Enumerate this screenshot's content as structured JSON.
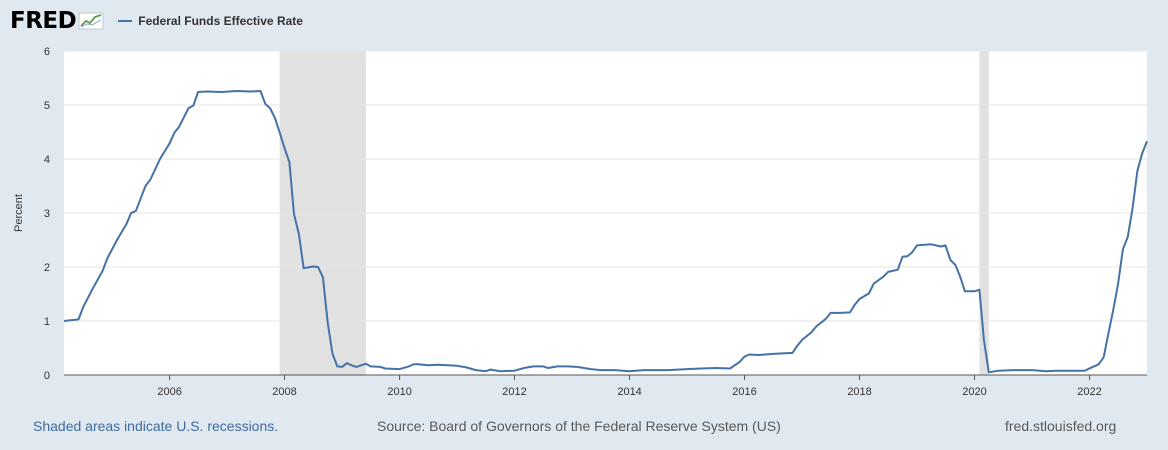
{
  "header": {
    "logo_text": "FRED",
    "logo_icon": "trend-chart-icon",
    "legend_label": "Federal Funds Effective Rate"
  },
  "footer": {
    "left": "Shaded areas indicate U.S. recessions.",
    "source": "Source: Board of Governors of the Federal Reserve System (US)",
    "site": "fred.stlouisfed.org"
  },
  "colors": {
    "background": "#e1e9f0",
    "plot_background": "#ffffff",
    "line": "#4572a7",
    "recession": "#e1e1e1",
    "grid": "#e6e6e6"
  },
  "chart_data": {
    "type": "line",
    "title": "",
    "ylabel": "Percent",
    "xlabel": "",
    "ylim": [
      0,
      6
    ],
    "xlim": [
      "2004-03-01",
      "2023-01-01"
    ],
    "y_ticks": [
      "0",
      "1",
      "2",
      "3",
      "4",
      "5",
      "6"
    ],
    "x_ticks": [
      "2006",
      "2008",
      "2010",
      "2012",
      "2014",
      "2016",
      "2018",
      "2020",
      "2022"
    ],
    "grid": true,
    "legend": "top-left",
    "recessions": [
      [
        "2007-12-01",
        "2009-06-01"
      ],
      [
        "2020-02-01",
        "2020-04-01"
      ]
    ],
    "series": [
      {
        "name": "Federal Funds Effective Rate",
        "points": [
          [
            "2004-03-01",
            1.0
          ],
          [
            "2004-06-01",
            1.03
          ],
          [
            "2004-07-01",
            1.26
          ],
          [
            "2004-09-01",
            1.61
          ],
          [
            "2004-11-01",
            1.93
          ],
          [
            "2004-12-01",
            2.16
          ],
          [
            "2005-02-01",
            2.5
          ],
          [
            "2005-04-01",
            2.79
          ],
          [
            "2005-05-01",
            3.0
          ],
          [
            "2005-06-01",
            3.04
          ],
          [
            "2005-08-01",
            3.5
          ],
          [
            "2005-09-01",
            3.62
          ],
          [
            "2005-11-01",
            4.0
          ],
          [
            "2006-01-01",
            4.29
          ],
          [
            "2006-02-01",
            4.49
          ],
          [
            "2006-03-01",
            4.59
          ],
          [
            "2006-05-01",
            4.94
          ],
          [
            "2006-06-01",
            4.99
          ],
          [
            "2006-07-01",
            5.24
          ],
          [
            "2006-09-01",
            5.25
          ],
          [
            "2006-12-01",
            5.24
          ],
          [
            "2007-03-01",
            5.26
          ],
          [
            "2007-06-01",
            5.25
          ],
          [
            "2007-08-01",
            5.26
          ],
          [
            "2007-09-01",
            5.02
          ],
          [
            "2007-10-01",
            4.94
          ],
          [
            "2007-11-01",
            4.76
          ],
          [
            "2007-12-01",
            4.49
          ],
          [
            "2008-01-01",
            4.2
          ],
          [
            "2008-02-01",
            3.94
          ],
          [
            "2008-03-01",
            2.98
          ],
          [
            "2008-04-01",
            2.61
          ],
          [
            "2008-05-01",
            1.98
          ],
          [
            "2008-07-01",
            2.01
          ],
          [
            "2008-08-01",
            2.0
          ],
          [
            "2008-09-01",
            1.81
          ],
          [
            "2008-10-01",
            0.97
          ],
          [
            "2008-11-01",
            0.39
          ],
          [
            "2008-12-01",
            0.16
          ],
          [
            "2009-01-01",
            0.15
          ],
          [
            "2009-02-01",
            0.22
          ],
          [
            "2009-03-01",
            0.18
          ],
          [
            "2009-04-01",
            0.15
          ],
          [
            "2009-06-01",
            0.21
          ],
          [
            "2009-07-01",
            0.16
          ],
          [
            "2009-09-01",
            0.15
          ],
          [
            "2009-10-01",
            0.12
          ],
          [
            "2010-01-01",
            0.11
          ],
          [
            "2010-03-01",
            0.16
          ],
          [
            "2010-04-01",
            0.2
          ],
          [
            "2010-05-01",
            0.2
          ],
          [
            "2010-07-01",
            0.18
          ],
          [
            "2010-09-01",
            0.19
          ],
          [
            "2011-01-01",
            0.17
          ],
          [
            "2011-03-01",
            0.14
          ],
          [
            "2011-05-01",
            0.09
          ],
          [
            "2011-07-01",
            0.07
          ],
          [
            "2011-08-01",
            0.1
          ],
          [
            "2011-10-01",
            0.07
          ],
          [
            "2012-01-01",
            0.08
          ],
          [
            "2012-03-01",
            0.13
          ],
          [
            "2012-05-01",
            0.16
          ],
          [
            "2012-07-01",
            0.16
          ],
          [
            "2012-08-01",
            0.13
          ],
          [
            "2012-10-01",
            0.16
          ],
          [
            "2012-12-01",
            0.16
          ],
          [
            "2013-02-01",
            0.15
          ],
          [
            "2013-05-01",
            0.11
          ],
          [
            "2013-07-01",
            0.09
          ],
          [
            "2013-10-01",
            0.09
          ],
          [
            "2014-01-01",
            0.07
          ],
          [
            "2014-04-01",
            0.09
          ],
          [
            "2014-07-01",
            0.09
          ],
          [
            "2014-09-01",
            0.09
          ],
          [
            "2015-01-01",
            0.11
          ],
          [
            "2015-04-01",
            0.12
          ],
          [
            "2015-07-01",
            0.13
          ],
          [
            "2015-10-01",
            0.12
          ],
          [
            "2015-12-01",
            0.24
          ],
          [
            "2016-01-01",
            0.34
          ],
          [
            "2016-02-01",
            0.38
          ],
          [
            "2016-04-01",
            0.37
          ],
          [
            "2016-07-01",
            0.39
          ],
          [
            "2016-09-01",
            0.4
          ],
          [
            "2016-11-01",
            0.41
          ],
          [
            "2016-12-01",
            0.54
          ],
          [
            "2017-01-01",
            0.65
          ],
          [
            "2017-03-01",
            0.79
          ],
          [
            "2017-04-01",
            0.9
          ],
          [
            "2017-06-01",
            1.04
          ],
          [
            "2017-07-01",
            1.15
          ],
          [
            "2017-09-01",
            1.15
          ],
          [
            "2017-11-01",
            1.16
          ],
          [
            "2017-12-01",
            1.3
          ],
          [
            "2018-01-01",
            1.41
          ],
          [
            "2018-03-01",
            1.51
          ],
          [
            "2018-04-01",
            1.69
          ],
          [
            "2018-06-01",
            1.82
          ],
          [
            "2018-07-01",
            1.91
          ],
          [
            "2018-09-01",
            1.95
          ],
          [
            "2018-10-01",
            2.19
          ],
          [
            "2018-11-01",
            2.2
          ],
          [
            "2018-12-01",
            2.27
          ],
          [
            "2019-01-01",
            2.4
          ],
          [
            "2019-04-01",
            2.42
          ],
          [
            "2019-06-01",
            2.38
          ],
          [
            "2019-07-01",
            2.4
          ],
          [
            "2019-08-01",
            2.13
          ],
          [
            "2019-09-01",
            2.04
          ],
          [
            "2019-10-01",
            1.83
          ],
          [
            "2019-11-01",
            1.55
          ],
          [
            "2020-01-01",
            1.55
          ],
          [
            "2020-02-01",
            1.58
          ],
          [
            "2020-03-01",
            0.65
          ],
          [
            "2020-04-01",
            0.05
          ],
          [
            "2020-06-01",
            0.08
          ],
          [
            "2020-09-01",
            0.09
          ],
          [
            "2021-01-01",
            0.09
          ],
          [
            "2021-04-01",
            0.07
          ],
          [
            "2021-06-01",
            0.08
          ],
          [
            "2021-09-01",
            0.08
          ],
          [
            "2021-12-01",
            0.08
          ],
          [
            "2022-03-01",
            0.2
          ],
          [
            "2022-04-01",
            0.33
          ],
          [
            "2022-05-01",
            0.77
          ],
          [
            "2022-06-01",
            1.21
          ],
          [
            "2022-07-01",
            1.68
          ],
          [
            "2022-08-01",
            2.33
          ],
          [
            "2022-09-01",
            2.56
          ],
          [
            "2022-10-01",
            3.08
          ],
          [
            "2022-11-01",
            3.78
          ],
          [
            "2022-12-01",
            4.1
          ],
          [
            "2023-01-01",
            4.33
          ]
        ]
      }
    ]
  }
}
